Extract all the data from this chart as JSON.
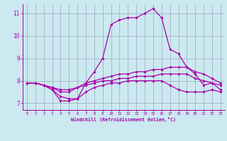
{
  "xlabel": "Windchill (Refroidissement éolien,°C)",
  "background_color": "#cce8f0",
  "line_color": "#aa00aa",
  "grid_color": "#99aabb",
  "xlim": [
    -0.5,
    23.5
  ],
  "ylim": [
    6.7,
    11.4
  ],
  "yticks": [
    7,
    8,
    9,
    10,
    11
  ],
  "xticks": [
    0,
    1,
    2,
    3,
    4,
    5,
    6,
    7,
    8,
    9,
    10,
    11,
    12,
    13,
    14,
    15,
    16,
    17,
    18,
    19,
    20,
    21,
    22,
    23
  ],
  "series": [
    {
      "x": [
        0,
        1,
        2,
        3,
        4,
        5,
        6,
        7,
        8,
        9,
        10,
        11,
        12,
        13,
        14,
        15,
        16,
        17,
        18,
        19,
        20,
        21,
        22,
        23
      ],
      "y": [
        7.9,
        7.9,
        7.8,
        7.6,
        7.1,
        7.1,
        7.2,
        7.9,
        8.4,
        9.0,
        10.5,
        10.7,
        10.8,
        10.8,
        11.0,
        11.2,
        10.8,
        9.4,
        9.2,
        8.6,
        8.3,
        7.8,
        7.9,
        7.6
      ]
    },
    {
      "x": [
        0,
        1,
        2,
        3,
        4,
        5,
        6,
        7,
        8,
        9,
        10,
        11,
        12,
        13,
        14,
        15,
        16,
        17,
        18,
        19,
        20,
        21,
        22,
        23
      ],
      "y": [
        7.9,
        7.9,
        7.8,
        7.7,
        7.5,
        7.5,
        7.7,
        7.9,
        8.0,
        8.1,
        8.2,
        8.3,
        8.3,
        8.4,
        8.4,
        8.5,
        8.5,
        8.6,
        8.6,
        8.6,
        8.4,
        8.3,
        8.1,
        7.9
      ]
    },
    {
      "x": [
        0,
        1,
        2,
        3,
        4,
        5,
        6,
        7,
        8,
        9,
        10,
        11,
        12,
        13,
        14,
        15,
        16,
        17,
        18,
        19,
        20,
        21,
        22,
        23
      ],
      "y": [
        7.9,
        7.9,
        7.8,
        7.7,
        7.6,
        7.6,
        7.7,
        7.8,
        7.9,
        8.0,
        8.0,
        8.1,
        8.1,
        8.2,
        8.2,
        8.2,
        8.3,
        8.3,
        8.3,
        8.3,
        8.1,
        8.0,
        7.9,
        7.8
      ]
    },
    {
      "x": [
        0,
        1,
        2,
        3,
        4,
        5,
        6,
        7,
        8,
        9,
        10,
        11,
        12,
        13,
        14,
        15,
        16,
        17,
        18,
        19,
        20,
        21,
        22,
        23
      ],
      "y": [
        7.9,
        7.9,
        7.8,
        7.6,
        7.3,
        7.2,
        7.2,
        7.5,
        7.7,
        7.8,
        7.9,
        7.9,
        8.0,
        8.0,
        8.0,
        8.0,
        8.0,
        7.8,
        7.6,
        7.5,
        7.5,
        7.5,
        7.6,
        7.5
      ]
    }
  ],
  "markersize": 1.8,
  "linewidth": 0.9
}
